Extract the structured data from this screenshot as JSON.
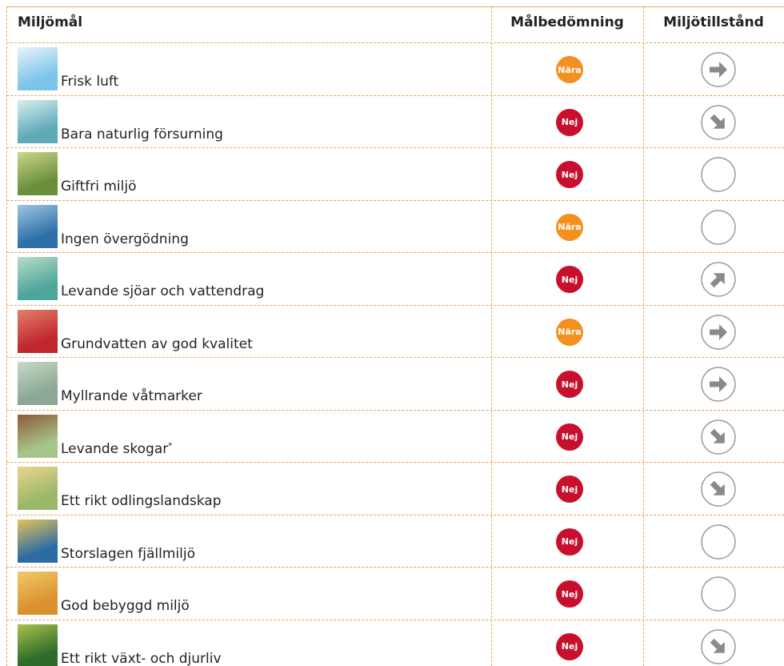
{
  "header": {
    "goal": "Miljömål",
    "assessment": "Målbedömning",
    "state": "Miljötillstånd"
  },
  "rows": [
    {
      "name": "Frisk luft",
      "assessment": "Nära"
    },
    {
      "name": "Bara naturlig försurning",
      "assessment": "Nej"
    },
    {
      "name": "Giftfri miljö",
      "assessment": "Nej"
    },
    {
      "name": "Ingen övergödning",
      "assessment": "Nära"
    },
    {
      "name": "Levande sjöar och vattendrag",
      "assessment": "Nej"
    },
    {
      "name": "Grundvatten av god kvalitet",
      "assessment": "Nära"
    },
    {
      "name": "Myllrande våtmarker",
      "assessment": "Nej"
    },
    {
      "name": "Levande skogar",
      "note": "*",
      "assessment": "Nej"
    },
    {
      "name": "Ett rikt odlingslandskap",
      "assessment": "Nej"
    },
    {
      "name": "Storslagen fjällmiljö",
      "assessment": "Nej"
    },
    {
      "name": "God bebyggd miljö",
      "assessment": "Nej"
    },
    {
      "name": "Ett rikt växt- och djurliv",
      "assessment": "Nej"
    }
  ]
}
